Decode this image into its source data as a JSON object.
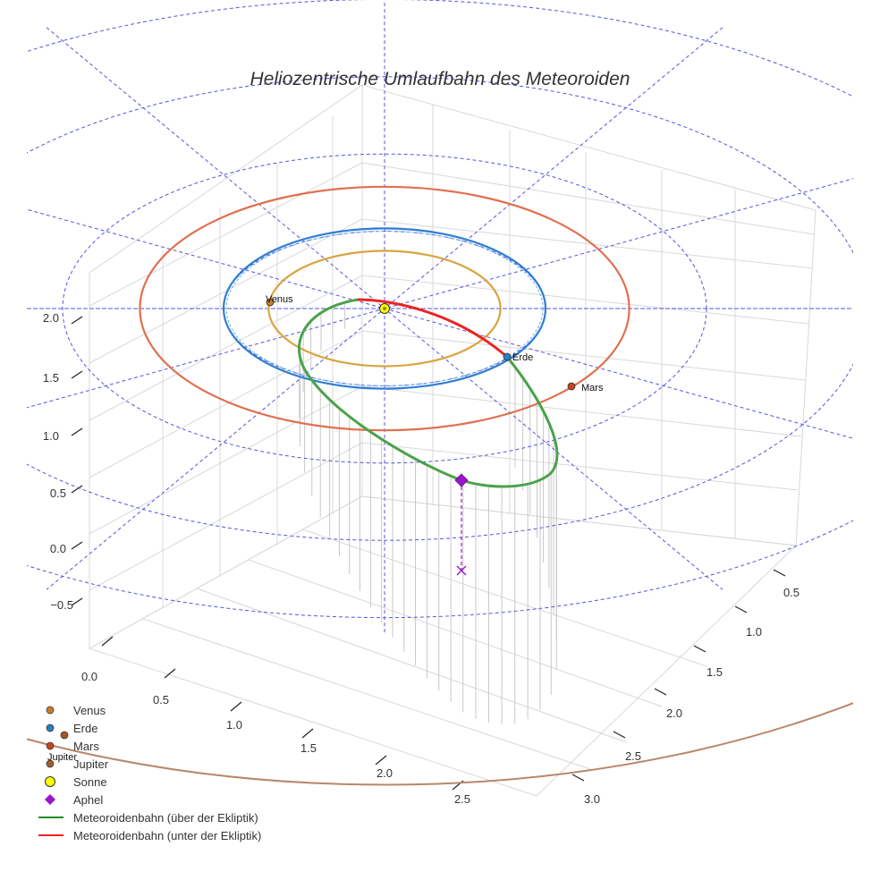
{
  "chart_data": {
    "type": "3d-orbit",
    "title": "Heliozentrische Umlaufbahn des Meteoroiden",
    "x_ticks": [
      "0.0",
      "0.5",
      "1.0",
      "1.5",
      "2.0",
      "2.5"
    ],
    "y_ticks": [
      "0.5",
      "1.0",
      "1.5",
      "2.0",
      "2.5",
      "3.0"
    ],
    "z_ticks": [
      "−0.5",
      "0.0",
      "0.5",
      "1.0",
      "1.5",
      "2.0"
    ],
    "planets": [
      {
        "name": "Venus",
        "label": "Venus",
        "orbit_au": 0.72,
        "color": "#d9a441"
      },
      {
        "name": "Erde",
        "label": "Erde",
        "orbit_au": 1.0,
        "color": "#2f7fd1"
      },
      {
        "name": "Mars",
        "label": "Mars",
        "orbit_au": 1.52,
        "color": "#e07050"
      },
      {
        "name": "Jupiter",
        "label": "Jupiter",
        "orbit_au": 5.2,
        "color": "#b8876a"
      }
    ],
    "sun": {
      "name": "Sonne",
      "color": "#ffff00"
    },
    "aphel": {
      "name": "Aphel",
      "color": "#9a16c9"
    },
    "meteoroid": {
      "above_color": "#4aa24a",
      "below_color": "#ee2222",
      "above_label": "Meteoroidenbahn (über der Ekliptik)",
      "below_label": "Meteoroidenbahn (unter der Ekliptik)"
    },
    "reference_circles_au": [
      1,
      2,
      3,
      4
    ],
    "legend": [
      {
        "label": "Venus",
        "kind": "dot",
        "color": "#c77d2a"
      },
      {
        "label": "Erde",
        "kind": "dot",
        "color": "#2a7fbf"
      },
      {
        "label": "Mars",
        "kind": "dot",
        "color": "#c4461f"
      },
      {
        "label": "Jupiter",
        "kind": "dot",
        "color": "#a35a2a"
      },
      {
        "label": "Sonne",
        "kind": "sun",
        "color": "#ffff00"
      },
      {
        "label": "Aphel",
        "kind": "diamond",
        "color": "#9a16c9"
      },
      {
        "label": "Meteoroidenbahn (über der Ekliptik)",
        "kind": "line",
        "color": "#228b22"
      },
      {
        "label": "Meteoroidenbahn (unter der Ekliptik)",
        "kind": "line",
        "color": "#ee2222"
      }
    ]
  }
}
